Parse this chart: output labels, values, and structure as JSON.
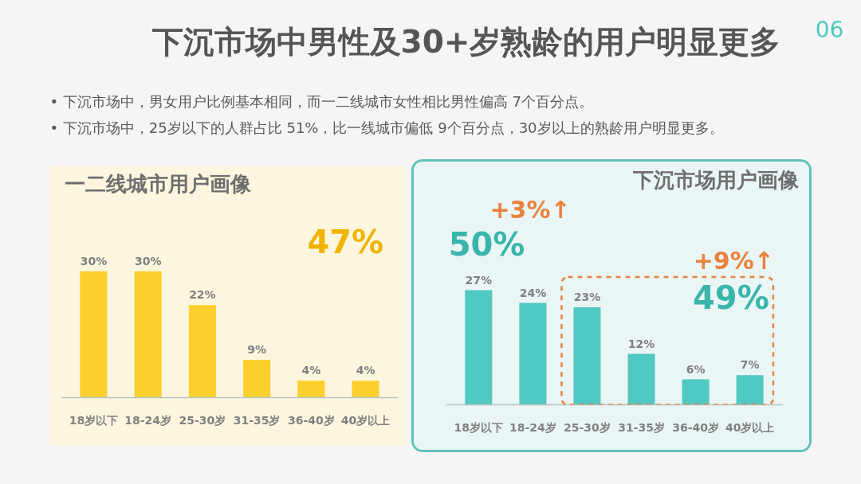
{
  "chart_data": [
    {
      "type": "other",
      "title": "下沉市场中男性及30+岁熟龄的用户明显更多",
      "annotations": [
        "•  下沉市场中，男女用户比例基本相同，而一二线城市女性相比男性偏高 7个百分点。",
        "•  下沉市场中，25岁以下的人群占比 51%，比一线城市偏低 9个百分点，30岁以上的熟龄用户明显更多。",
        "06"
      ]
    },
    {
      "type": "bar",
      "title": "一二线城市用户画像",
      "categories": [
        "18岁以下",
        "18-24岁",
        "25-30岁",
        "31-35岁",
        "36-40岁",
        "40岁以上"
      ],
      "values": [
        30,
        30,
        22,
        9,
        4,
        4
      ],
      "value_labels": [
        "30%",
        "30%",
        "22%",
        "9%",
        "4%",
        "4%"
      ],
      "color": "#fdcf2e",
      "tick_labels": "x",
      "annotations": [
        "47%"
      ]
    },
    {
      "type": "bar",
      "title": "下沉市场用户画像",
      "categories": [
        "18岁以下",
        "18-24岁",
        "25-30岁",
        "31-35岁",
        "36-40岁",
        "40岁以上"
      ],
      "values": [
        27,
        24,
        23,
        12,
        6,
        7
      ],
      "value_labels": [
        "27%",
        "24%",
        "23%",
        "12%",
        "6%",
        "7%"
      ],
      "color": "#4fc9c1",
      "tick_labels": "x",
      "annotations": [
        "+3%↑",
        "50%",
        "+9%↑",
        "49%"
      ]
    }
  ]
}
